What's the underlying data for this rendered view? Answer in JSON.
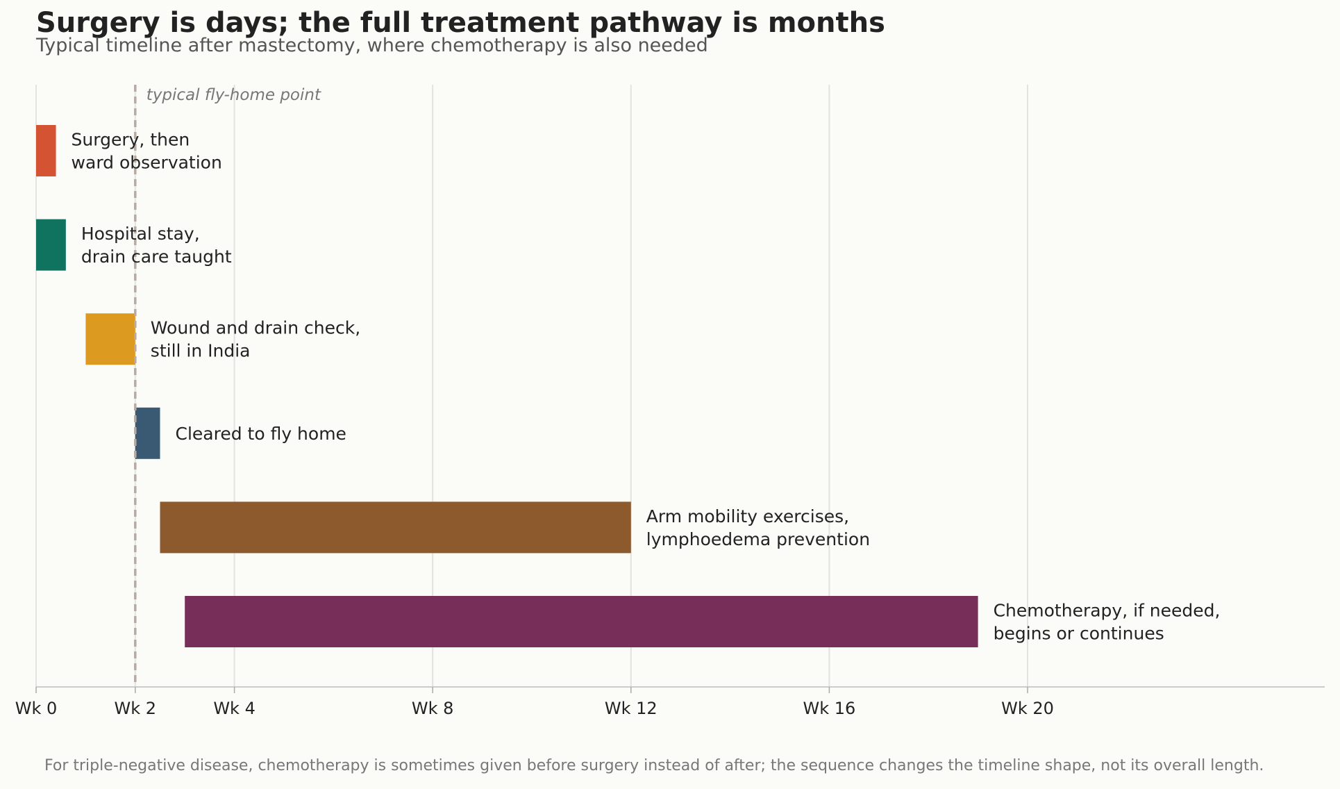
{
  "header": {
    "title": "Surgery is days; the full treatment pathway is months",
    "subtitle": "Typical timeline after mastectomy, where chemotherapy is also needed"
  },
  "footer": {
    "note": "For triple-negative disease, chemotherapy is sometimes given before surgery instead of after; the sequence changes the timeline shape, not its overall length."
  },
  "chart_data": {
    "type": "bar",
    "orientation": "horizontal-gantt",
    "x_unit": "weeks",
    "xlim": [
      0,
      26
    ],
    "xticks": [
      {
        "value": 0,
        "label": "Wk 0"
      },
      {
        "value": 2,
        "label": "Wk 2"
      },
      {
        "value": 4,
        "label": "Wk 4"
      },
      {
        "value": 8,
        "label": "Wk 8"
      },
      {
        "value": 12,
        "label": "Wk 12"
      },
      {
        "value": 16,
        "label": "Wk 16"
      },
      {
        "value": 20,
        "label": "Wk 20"
      }
    ],
    "grid": "vertical",
    "reference_line": {
      "value": 2,
      "label": "typical fly-home point",
      "style": "dashed",
      "color": "#b8aaa0"
    },
    "tasks": [
      {
        "label": [
          "Surgery, then",
          "ward observation"
        ],
        "start": 0,
        "end": 0.4,
        "color": "#d45333"
      },
      {
        "label": [
          "Hospital stay,",
          "drain care taught"
        ],
        "start": 0,
        "end": 0.6,
        "color": "#10735f"
      },
      {
        "label": [
          "Wound and drain check,",
          "still in India"
        ],
        "start": 1,
        "end": 2,
        "color": "#dc9a20"
      },
      {
        "label": [
          "Cleared to fly home"
        ],
        "start": 2,
        "end": 2.5,
        "color": "#3a5a74"
      },
      {
        "label": [
          "Arm mobility exercises,",
          "lymphoedema prevention"
        ],
        "start": 2.5,
        "end": 12,
        "color": "#8c5a2d"
      },
      {
        "label": [
          "Chemotherapy, if needed,",
          "begins or continues"
        ],
        "start": 3,
        "end": 19,
        "color": "#772e59"
      }
    ]
  }
}
